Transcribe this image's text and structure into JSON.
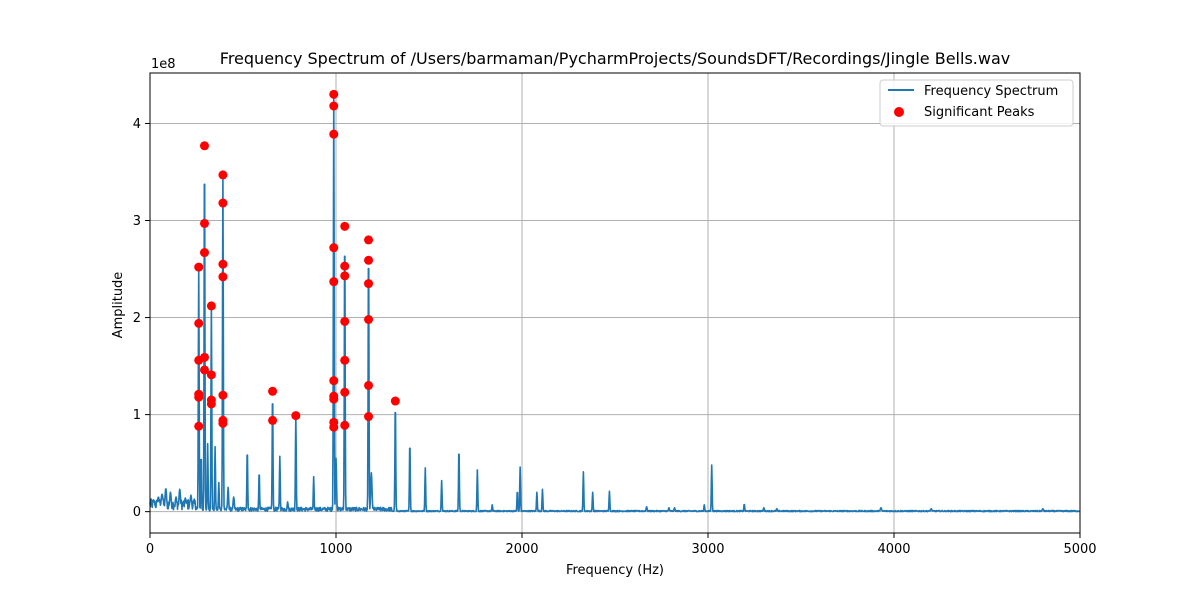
{
  "chart_data": {
    "type": "line",
    "title": "Frequency Spectrum of /Users/barmaman/PycharmProjects/SoundsDFT/Recordings/Jingle Bells.wav",
    "xlabel": "Frequency (Hz)",
    "ylabel": "Amplitude",
    "y_offset_label": "1e8",
    "y_multiplier": 100000000,
    "xlim": [
      0,
      5000
    ],
    "ylim": [
      -0.22,
      4.52
    ],
    "x_ticks": [
      0,
      1000,
      2000,
      3000,
      4000,
      5000
    ],
    "x_tick_labels": [
      "0",
      "1000",
      "2000",
      "3000",
      "4000",
      "5000"
    ],
    "y_ticks": [
      0,
      1,
      2,
      3,
      4
    ],
    "y_tick_labels": [
      "0",
      "1",
      "2",
      "3",
      "4"
    ],
    "grid": true,
    "legend_position": "top-right",
    "colors": {
      "spectrum": "#1f77b4",
      "peaks": "#ff0000",
      "grid": "#b0b0b0"
    },
    "series": [
      {
        "name": "Frequency Spectrum",
        "kind": "line",
        "peaks": [
          {
            "x": 20,
            "y": 0.12,
            "w": 8
          },
          {
            "x": 45,
            "y": 0.15,
            "w": 8
          },
          {
            "x": 65,
            "y": 0.18,
            "w": 8
          },
          {
            "x": 85,
            "y": 0.24,
            "w": 6
          },
          {
            "x": 110,
            "y": 0.2,
            "w": 6
          },
          {
            "x": 140,
            "y": 0.15,
            "w": 6
          },
          {
            "x": 160,
            "y": 0.23,
            "w": 6
          },
          {
            "x": 190,
            "y": 0.14,
            "w": 6
          },
          {
            "x": 220,
            "y": 0.17,
            "w": 6
          },
          {
            "x": 262,
            "y": 2.52,
            "w": 3
          },
          {
            "x": 275,
            "y": 0.6,
            "w": 3
          },
          {
            "x": 293,
            "y": 3.77,
            "w": 3
          },
          {
            "x": 310,
            "y": 0.7,
            "w": 3
          },
          {
            "x": 330,
            "y": 2.12,
            "w": 3
          },
          {
            "x": 350,
            "y": 0.67,
            "w": 3
          },
          {
            "x": 370,
            "y": 0.3,
            "w": 3
          },
          {
            "x": 392,
            "y": 3.47,
            "w": 3
          },
          {
            "x": 420,
            "y": 0.25,
            "w": 4
          },
          {
            "x": 450,
            "y": 0.15,
            "w": 5
          },
          {
            "x": 523,
            "y": 0.65,
            "w": 3
          },
          {
            "x": 587,
            "y": 0.42,
            "w": 3
          },
          {
            "x": 659,
            "y": 1.24,
            "w": 3
          },
          {
            "x": 698,
            "y": 0.57,
            "w": 3
          },
          {
            "x": 740,
            "y": 0.1,
            "w": 4
          },
          {
            "x": 784,
            "y": 0.99,
            "w": 3
          },
          {
            "x": 880,
            "y": 0.36,
            "w": 3
          },
          {
            "x": 988,
            "y": 4.3,
            "w": 3
          },
          {
            "x": 1000,
            "y": 0.55,
            "w": 4
          },
          {
            "x": 1047,
            "y": 2.94,
            "w": 3
          },
          {
            "x": 1175,
            "y": 2.8,
            "w": 3
          },
          {
            "x": 1190,
            "y": 0.4,
            "w": 5
          },
          {
            "x": 1319,
            "y": 1.14,
            "w": 3
          },
          {
            "x": 1397,
            "y": 0.73,
            "w": 3
          },
          {
            "x": 1480,
            "y": 0.45,
            "w": 3
          },
          {
            "x": 1568,
            "y": 0.32,
            "w": 3
          },
          {
            "x": 1661,
            "y": 0.66,
            "w": 3
          },
          {
            "x": 1760,
            "y": 0.43,
            "w": 3
          },
          {
            "x": 1840,
            "y": 0.07,
            "w": 3
          },
          {
            "x": 1975,
            "y": 0.22,
            "w": 3
          },
          {
            "x": 1990,
            "y": 0.46,
            "w": 3
          },
          {
            "x": 2080,
            "y": 0.2,
            "w": 3
          },
          {
            "x": 2110,
            "y": 0.23,
            "w": 3
          },
          {
            "x": 2330,
            "y": 0.41,
            "w": 3
          },
          {
            "x": 2380,
            "y": 0.2,
            "w": 3
          },
          {
            "x": 2470,
            "y": 0.21,
            "w": 3
          },
          {
            "x": 2670,
            "y": 0.05,
            "w": 4
          },
          {
            "x": 2790,
            "y": 0.04,
            "w": 4
          },
          {
            "x": 2820,
            "y": 0.04,
            "w": 4
          },
          {
            "x": 2980,
            "y": 0.07,
            "w": 3
          },
          {
            "x": 3020,
            "y": 0.48,
            "w": 3
          },
          {
            "x": 3195,
            "y": 0.08,
            "w": 3
          },
          {
            "x": 3300,
            "y": 0.04,
            "w": 4
          },
          {
            "x": 3370,
            "y": 0.03,
            "w": 4
          },
          {
            "x": 3930,
            "y": 0.04,
            "w": 5
          },
          {
            "x": 4200,
            "y": 0.03,
            "w": 5
          },
          {
            "x": 4800,
            "y": 0.03,
            "w": 5
          }
        ]
      },
      {
        "name": "Significant Peaks",
        "kind": "scatter",
        "points": [
          [
            262,
            2.52
          ],
          [
            262,
            1.94
          ],
          [
            262,
            1.56
          ],
          [
            262,
            1.21
          ],
          [
            262,
            1.18
          ],
          [
            262,
            0.88
          ],
          [
            293,
            3.77
          ],
          [
            293,
            2.97
          ],
          [
            293,
            2.67
          ],
          [
            293,
            1.59
          ],
          [
            293,
            1.46
          ],
          [
            330,
            2.12
          ],
          [
            330,
            1.41
          ],
          [
            330,
            1.15
          ],
          [
            330,
            1.11
          ],
          [
            392,
            3.47
          ],
          [
            392,
            3.18
          ],
          [
            392,
            2.55
          ],
          [
            392,
            2.42
          ],
          [
            392,
            1.2
          ],
          [
            392,
            0.94
          ],
          [
            392,
            0.91
          ],
          [
            659,
            1.24
          ],
          [
            659,
            0.94
          ],
          [
            784,
            0.99
          ],
          [
            988,
            4.3
          ],
          [
            988,
            4.18
          ],
          [
            988,
            3.89
          ],
          [
            988,
            2.72
          ],
          [
            988,
            2.37
          ],
          [
            988,
            1.35
          ],
          [
            988,
            1.19
          ],
          [
            988,
            1.16
          ],
          [
            988,
            0.92
          ],
          [
            988,
            0.87
          ],
          [
            1047,
            2.94
          ],
          [
            1047,
            2.53
          ],
          [
            1047,
            2.43
          ],
          [
            1047,
            1.96
          ],
          [
            1047,
            1.56
          ],
          [
            1047,
            1.23
          ],
          [
            1047,
            0.89
          ],
          [
            1175,
            2.8
          ],
          [
            1175,
            2.59
          ],
          [
            1175,
            2.35
          ],
          [
            1175,
            1.98
          ],
          [
            1175,
            1.3
          ],
          [
            1175,
            0.98
          ],
          [
            1319,
            1.14
          ]
        ]
      }
    ]
  }
}
